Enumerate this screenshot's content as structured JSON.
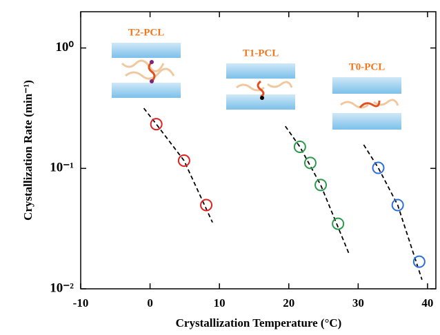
{
  "chart_data": {
    "type": "scatter",
    "log_y": true,
    "xlabel": "Crystallization Temperature (°C)",
    "ylabel": "Crystallization Rate (min⁻¹)",
    "xlim": [
      -10,
      41.2
    ],
    "ylim": [
      0.01,
      2
    ],
    "xticks": [
      -10,
      0,
      10,
      20,
      30,
      40
    ],
    "yticks": [
      {
        "value": 1,
        "label": "10⁰"
      },
      {
        "value": 0.1,
        "label": "10⁻¹"
      },
      {
        "value": 0.01,
        "label": "10⁻²"
      }
    ],
    "series": [
      {
        "name": "T2-PCL",
        "color": "#e02020",
        "x": [
          0.9,
          4.9,
          8.1
        ],
        "values": [
          0.233,
          0.116,
          0.0496
        ]
      },
      {
        "name": "T1-PCL",
        "color": "#2a9a4a",
        "x": [
          21.6,
          23.1,
          24.6,
          27.1
        ],
        "values": [
          0.151,
          0.111,
          0.0728,
          0.0347
        ]
      },
      {
        "name": "T0-PCL",
        "color": "#2a6fdb",
        "x": [
          32.9,
          35.7,
          38.8
        ],
        "values": [
          0.101,
          0.0496,
          0.0168
        ]
      }
    ],
    "fits": [
      {
        "color": "#000000",
        "x": [
          -0.9,
          0.9,
          4.9,
          9.0
        ],
        "values": [
          0.316,
          0.233,
          0.116,
          0.0356
        ]
      },
      {
        "color": "#000000",
        "x": [
          19.5,
          21.6,
          24.6,
          28.7
        ],
        "values": [
          0.224,
          0.151,
          0.0728,
          0.0194
        ]
      },
      {
        "color": "#000000",
        "x": [
          30.8,
          32.9,
          35.7,
          39.2
        ],
        "values": [
          0.157,
          0.101,
          0.0496,
          0.0119
        ]
      }
    ],
    "label_color": "#f07820"
  }
}
